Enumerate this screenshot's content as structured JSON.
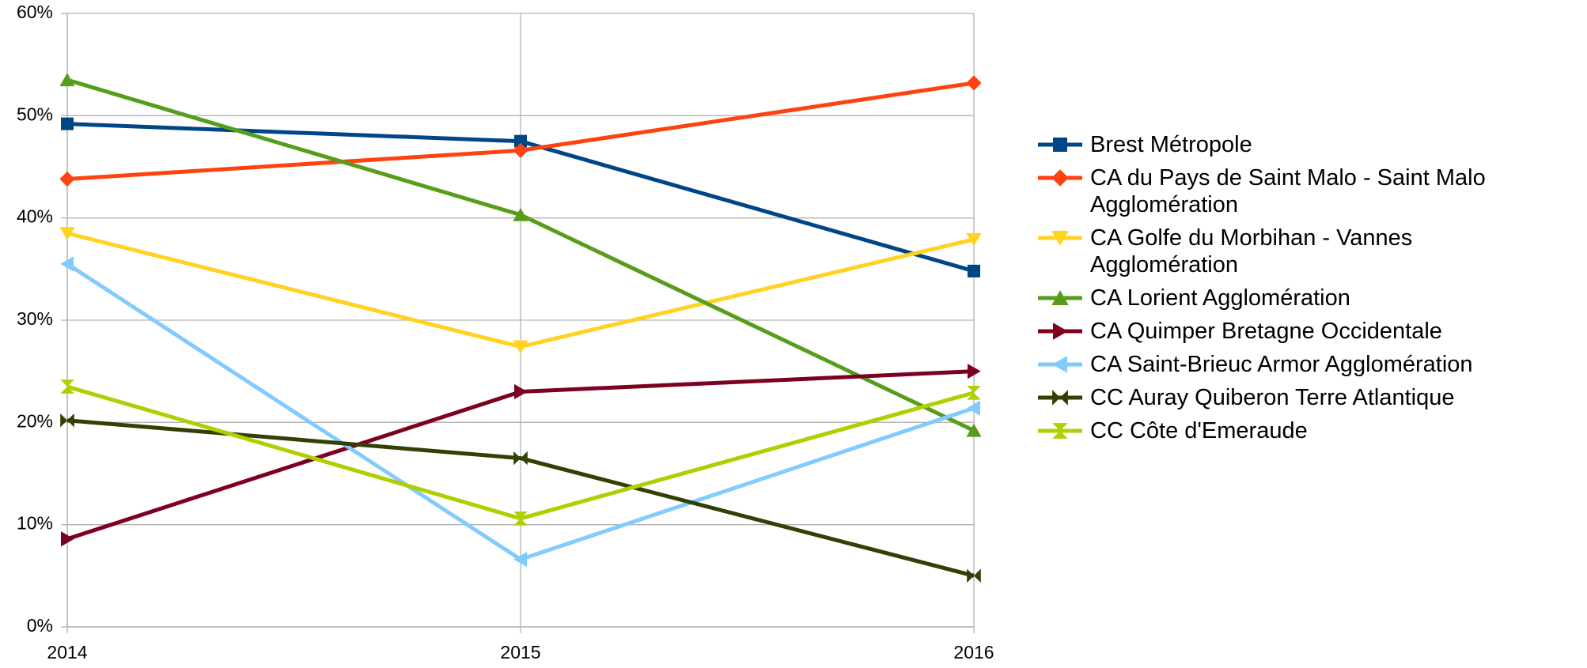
{
  "chart_data": {
    "type": "line",
    "x": [
      2014,
      2015,
      2016
    ],
    "xlim": [
      2014,
      2016
    ],
    "xticks": [
      2014,
      2015,
      2016
    ],
    "ylim": [
      0,
      60
    ],
    "yticks": [
      {
        "value": 0,
        "label": "0%"
      },
      {
        "value": 10,
        "label": "10%"
      },
      {
        "value": 20,
        "label": "20%"
      },
      {
        "value": 30,
        "label": "30%"
      },
      {
        "value": 40,
        "label": "40%"
      },
      {
        "value": 50,
        "label": "50%"
      },
      {
        "value": 60,
        "label": "60%"
      }
    ],
    "grid": true,
    "legend": "right",
    "series": [
      {
        "name": "Brest Métropole",
        "color": "#004586",
        "marker": "square",
        "values": [
          49.2,
          47.5,
          34.8
        ]
      },
      {
        "name": "CA du Pays de Saint Malo - Saint Malo Agglomération",
        "color": "#ff420e",
        "marker": "diamond",
        "values": [
          43.8,
          46.6,
          53.2
        ]
      },
      {
        "name": "CA Golfe du Morbihan - Vannes Agglomération",
        "color": "#ffd320",
        "marker": "triangle-down",
        "values": [
          38.5,
          27.4,
          37.9
        ]
      },
      {
        "name": "CA Lorient Agglomération",
        "color": "#579d1c",
        "marker": "triangle-up",
        "values": [
          53.5,
          40.3,
          19.2
        ]
      },
      {
        "name": "CA Quimper Bretagne Occidentale",
        "color": "#7e0021",
        "marker": "triangle-right",
        "values": [
          8.6,
          23.0,
          25.0
        ]
      },
      {
        "name": "CA Saint-Brieuc Armor Agglomération",
        "color": "#83caff",
        "marker": "triangle-left",
        "values": [
          35.5,
          6.6,
          21.4
        ]
      },
      {
        "name": "CC Auray Quiberon Terre Atlantique",
        "color": "#314004",
        "marker": "bowtie",
        "values": [
          20.2,
          16.5,
          5.0
        ]
      },
      {
        "name": "CC Côte d'Emeraude",
        "color": "#aecf00",
        "marker": "hourglass",
        "values": [
          23.5,
          10.6,
          22.9
        ]
      }
    ]
  }
}
